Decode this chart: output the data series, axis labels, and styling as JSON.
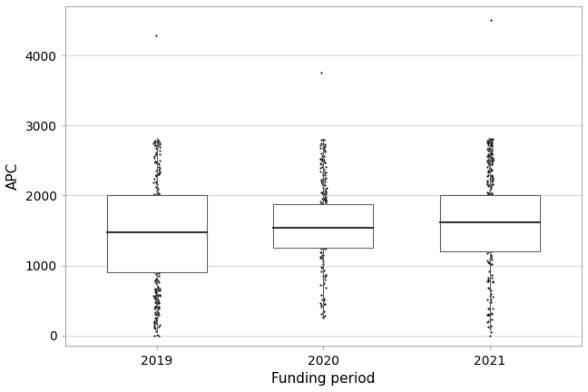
{
  "title": "",
  "xlabel": "Funding period",
  "ylabel": "APC",
  "categories": [
    "2019",
    "2020",
    "2021"
  ],
  "box_stats": {
    "2019": {
      "q1": 900,
      "median": 1480,
      "q3": 2000,
      "whisker_low": 50,
      "whisker_high": 2820
    },
    "2020": {
      "q1": 1250,
      "median": 1540,
      "q3": 1880,
      "whisker_low": 240,
      "whisker_high": 2800
    },
    "2021": {
      "q1": 1200,
      "median": 1620,
      "q3": 2010,
      "whisker_low": 80,
      "whisker_high": 2820
    }
  },
  "point_data": {
    "2019": {
      "n_low_dense": 80,
      "low_range": [
        50,
        900
      ],
      "n_high_dense": 60,
      "high_range": [
        2820,
        3500
      ],
      "n_inner": 200,
      "outliers": [
        0,
        5,
        10,
        4280
      ]
    },
    "2020": {
      "n_low_dense": 40,
      "low_range": [
        240,
        1250
      ],
      "n_high_dense": 80,
      "high_range": [
        2800,
        3700
      ],
      "n_inner": 280,
      "outliers": [
        3750
      ]
    },
    "2021": {
      "n_low_dense": 50,
      "low_range": [
        80,
        1200
      ],
      "n_high_dense": 100,
      "high_range": [
        2820,
        3550
      ],
      "n_inner": 300,
      "outliers": [
        0,
        50,
        4500
      ]
    }
  },
  "ylim": [
    -150,
    4700
  ],
  "yticks": [
    0,
    1000,
    2000,
    3000,
    4000
  ],
  "background_color": "#ffffff",
  "grid_color": "#d9d9d9",
  "box_edge_color": "#666666",
  "box_fill": "#ffffff",
  "median_color": "#333333",
  "dot_color": "#1a1a1a",
  "box_width": 0.6,
  "linewidth": 0.8,
  "median_linewidth": 1.5,
  "dot_size": 2.5,
  "jitter_amount": 0.018,
  "axis_fontsize": 11,
  "tick_fontsize": 10
}
